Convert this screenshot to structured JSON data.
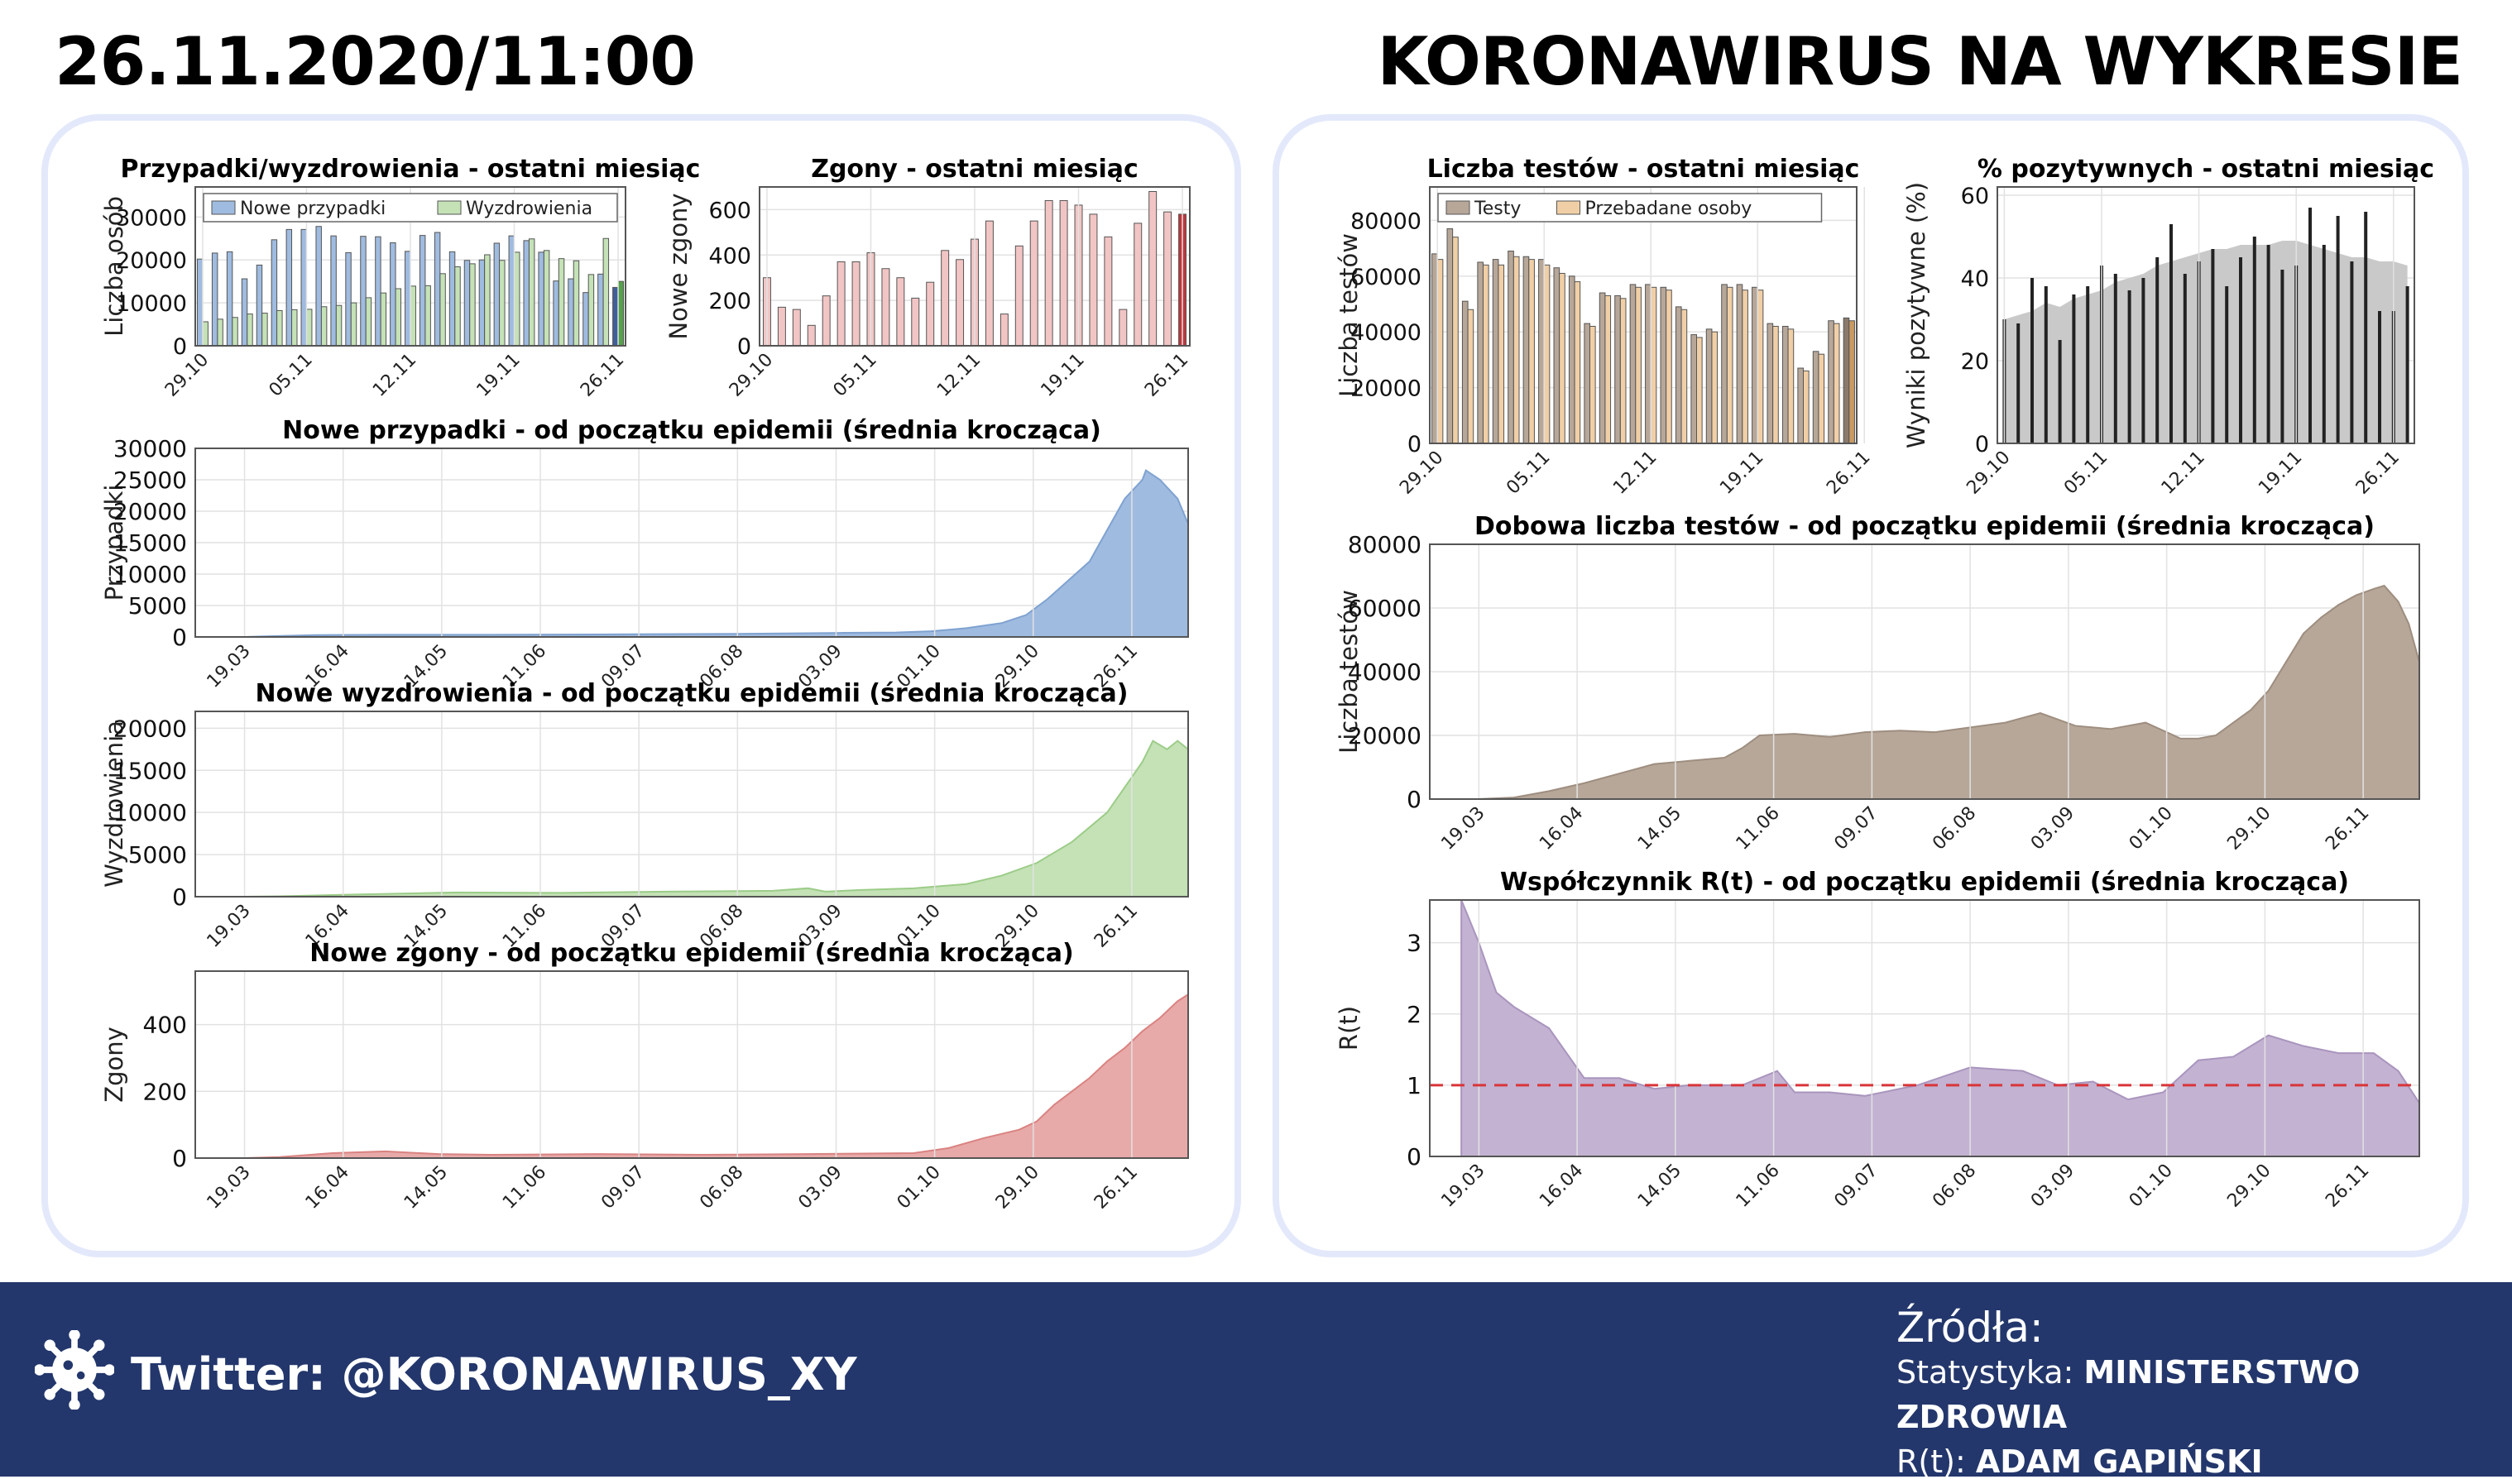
{
  "header": {
    "date": "26.11.2020/11:00",
    "title": "KORONAWIRUS NA WYKRESIE"
  },
  "footer": {
    "twitter": "Twitter: @KORONAWIRUS_XY",
    "sources_title": "Źródła:",
    "stat_label": "Statystyka: ",
    "stat_value": "MINISTERSTWO ZDROWIA",
    "rt_label": "R(t): ",
    "rt_value": "ADAM GAPIŃSKI"
  },
  "colors": {
    "blue": "#9fbbe0",
    "green": "#c4e2b6",
    "red": "#e8aaa9",
    "tan": "#b7a799",
    "purple": "#c3b2d2",
    "grey": "#bdbdbd",
    "navy": "#23376c"
  },
  "chart_data": [
    {
      "id": "cases-recoveries-month",
      "type": "bar",
      "title": "Przypadki/wyzdrowienia - ostatni miesiąc",
      "ylabel": "Liczba osób",
      "ylim": [
        0,
        37000
      ],
      "yticks": [
        0,
        10000,
        20000,
        30000
      ],
      "xticks": [
        "29.10",
        "05.11",
        "12.11",
        "19.11",
        "26.11"
      ],
      "legend": "top-left",
      "series": [
        {
          "name": "Nowe przypadki",
          "color": "#9fbbe0",
          "highlight": "#3f5f9a",
          "values": [
            20200,
            21600,
            21900,
            15600,
            18800,
            24700,
            27100,
            27100,
            27800,
            25600,
            21700,
            25500,
            25400,
            24000,
            22000,
            25700,
            26400,
            21900,
            19900,
            20000,
            23900,
            25600,
            24500,
            21800,
            15100,
            15600,
            12400,
            16700,
            13600
          ]
        },
        {
          "name": "Wyzdrowienia",
          "color": "#c4e2b6",
          "highlight": "#55a24a",
          "values": [
            5600,
            6200,
            6600,
            7400,
            7600,
            8200,
            8400,
            8500,
            9100,
            9400,
            10000,
            11200,
            12300,
            13300,
            13900,
            14000,
            16800,
            18400,
            19100,
            21200,
            19900,
            21800,
            24900,
            22200,
            20300,
            19800,
            16600,
            25000,
            15000
          ]
        }
      ]
    },
    {
      "id": "deaths-month",
      "type": "bar",
      "title": "Zgony - ostatni miesiąc",
      "ylabel": "Nowe zgony",
      "ylim": [
        0,
        700
      ],
      "yticks": [
        0,
        200,
        400,
        600
      ],
      "xticks": [
        "29.10",
        "05.11",
        "12.11",
        "19.11",
        "26.11"
      ],
      "series": [
        {
          "name": "",
          "color": "#f2c5c5",
          "highlight": "#c0353a",
          "values": [
            300,
            170,
            160,
            90,
            220,
            370,
            370,
            410,
            340,
            300,
            210,
            280,
            420,
            380,
            470,
            550,
            140,
            440,
            550,
            640,
            640,
            620,
            580,
            480,
            160,
            540,
            680,
            590,
            580
          ]
        }
      ]
    },
    {
      "id": "new-cases-epidemic",
      "type": "area",
      "title": "Nowe przypadki - od początku epidemii (średnia krocząca)",
      "ylabel": "Przypadki",
      "ylim": [
        0,
        30000
      ],
      "yticks": [
        0,
        5000,
        10000,
        15000,
        20000,
        25000,
        30000
      ],
      "xticks": [
        "19.03",
        "16.04",
        "14.05",
        "11.06",
        "09.07",
        "06.08",
        "03.09",
        "01.10",
        "29.10",
        "26.11"
      ],
      "x_days": [
        0,
        6,
        20,
        40,
        70,
        100,
        140,
        170,
        185,
        195,
        205,
        215,
        222,
        228,
        233,
        240,
        245,
        250,
        255,
        256,
        260,
        265,
        268
      ],
      "values": [
        0,
        100,
        300,
        350,
        350,
        400,
        500,
        650,
        700,
        900,
        1400,
        2200,
        3500,
        6000,
        8500,
        12000,
        17000,
        22000,
        25000,
        26500,
        25000,
        22000,
        18000
      ],
      "color": "#9fbbe0",
      "stroke": "#7fa2d0"
    },
    {
      "id": "new-recoveries-epidemic",
      "type": "area",
      "title": "Nowe wyzdrowienia - od początku epidemii (średnia krocząca)",
      "ylabel": "Wyzdrowienia",
      "ylim": [
        0,
        22000
      ],
      "yticks": [
        0,
        5000,
        10000,
        15000,
        20000
      ],
      "xticks": [
        "19.03",
        "16.04",
        "14.05",
        "11.06",
        "09.07",
        "06.08",
        "03.09",
        "01.10",
        "29.10",
        "26.11"
      ],
      "x_days": [
        0,
        10,
        30,
        60,
        90,
        120,
        150,
        160,
        165,
        175,
        190,
        205,
        215,
        225,
        235,
        245,
        250,
        255,
        258,
        262,
        265,
        268
      ],
      "values": [
        0,
        50,
        250,
        500,
        450,
        600,
        700,
        1000,
        600,
        800,
        1000,
        1500,
        2500,
        4000,
        6500,
        10000,
        13000,
        16000,
        18500,
        17500,
        18500,
        17500
      ],
      "color": "#c4e2b6",
      "stroke": "#9ccc88"
    },
    {
      "id": "new-deaths-epidemic",
      "type": "area",
      "title": "Nowe zgony - od początku epidemii (średnia krocząca)",
      "ylabel": "Zgony",
      "ylim": [
        0,
        560
      ],
      "yticks": [
        0,
        200,
        400
      ],
      "xticks": [
        "19.03",
        "16.04",
        "14.05",
        "11.06",
        "09.07",
        "06.08",
        "03.09",
        "01.10",
        "29.10",
        "26.11"
      ],
      "x_days": [
        0,
        10,
        25,
        40,
        55,
        70,
        100,
        130,
        160,
        190,
        200,
        210,
        220,
        225,
        230,
        235,
        240,
        245,
        250,
        255,
        260,
        265,
        268
      ],
      "values": [
        0,
        3,
        15,
        20,
        12,
        10,
        12,
        10,
        12,
        15,
        30,
        60,
        85,
        110,
        160,
        200,
        240,
        290,
        330,
        380,
        420,
        470,
        490
      ],
      "color": "#e8aaa9",
      "stroke": "#d98381"
    },
    {
      "id": "tests-month",
      "type": "bar",
      "title": "Liczba testów - ostatni miesiąc",
      "ylabel": "Liczba testów",
      "ylim": [
        0,
        92000
      ],
      "yticks": [
        0,
        20000,
        40000,
        60000,
        80000
      ],
      "xticks": [
        "29.10",
        "05.11",
        "12.11",
        "19.11",
        "26.11"
      ],
      "legend": "top-left",
      "series": [
        {
          "name": "Testy",
          "color": "#b7a799",
          "highlight": "#8a7a6c",
          "values": [
            68000,
            77000,
            51000,
            65000,
            66000,
            69000,
            67000,
            66000,
            63000,
            60000,
            43000,
            54000,
            53000,
            57000,
            57000,
            56000,
            49000,
            39000,
            41000,
            57000,
            57000,
            56000,
            43000,
            42000,
            27000,
            33000,
            44000,
            45000
          ]
        },
        {
          "name": "Przebadane osoby",
          "color": "#f1cfa6",
          "highlight": "#c99a61",
          "values": [
            66000,
            74000,
            48000,
            64000,
            64000,
            67000,
            66000,
            64000,
            61000,
            58000,
            42000,
            53000,
            52000,
            56000,
            56000,
            55000,
            48000,
            38000,
            40000,
            56000,
            55000,
            55000,
            42000,
            41000,
            26000,
            32000,
            43000,
            44000
          ]
        }
      ]
    },
    {
      "id": "positive-month",
      "type": "bar",
      "title": "% pozytywnych - ostatni miesiąc",
      "ylabel": "Wyniki pozytywne (%)",
      "ylim": [
        0,
        62
      ],
      "yticks": [
        0,
        20,
        40,
        60
      ],
      "xticks": [
        "29.10",
        "05.11",
        "12.11",
        "19.11",
        "26.11"
      ],
      "series": [
        {
          "name": "",
          "color": "#222222",
          "values": [
            30,
            29,
            40,
            38,
            25,
            36,
            38,
            43,
            41,
            37,
            40,
            45,
            53,
            41,
            44,
            47,
            38,
            45,
            50,
            48,
            42,
            43,
            57,
            48,
            55,
            44,
            56,
            32,
            32,
            38
          ]
        }
      ],
      "background_area": {
        "color": "#c9c9c9",
        "values": [
          30,
          31,
          32,
          34,
          33,
          35,
          36,
          37,
          39,
          40,
          41,
          43,
          44,
          45,
          46,
          47,
          47,
          48,
          48,
          48,
          49,
          49,
          48,
          47,
          46,
          45,
          45,
          44,
          44,
          43
        ]
      }
    },
    {
      "id": "daily-tests-epidemic",
      "type": "area",
      "title": "Dobowa liczba testów - od początku epidemii (średnia krocząca)",
      "ylabel": "Liczba testów",
      "ylim": [
        0,
        80000
      ],
      "yticks": [
        0,
        20000,
        40000,
        60000,
        80000
      ],
      "xticks": [
        "19.03",
        "16.04",
        "14.05",
        "11.06",
        "09.07",
        "06.08",
        "03.09",
        "01.10",
        "29.10",
        "26.11"
      ],
      "x_days": [
        0,
        10,
        20,
        30,
        40,
        50,
        60,
        70,
        75,
        80,
        90,
        100,
        110,
        120,
        130,
        140,
        150,
        160,
        170,
        180,
        190,
        200,
        205,
        210,
        215,
        220,
        225,
        230,
        235,
        240,
        245,
        250,
        255,
        258,
        262,
        265,
        268
      ],
      "values": [
        0,
        500,
        2500,
        5000,
        8000,
        11000,
        12000,
        13000,
        16000,
        20000,
        20500,
        19500,
        21000,
        21500,
        21000,
        22500,
        24000,
        27000,
        23000,
        22000,
        24000,
        19000,
        19000,
        20000,
        24000,
        28000,
        34000,
        43000,
        52000,
        57000,
        61000,
        64000,
        66000,
        67000,
        62000,
        55000,
        43000
      ],
      "color": "#b7a799",
      "stroke": "#9e8e80"
    },
    {
      "id": "rt-epidemic",
      "type": "area",
      "title": "Współczynnik R(t) - od początku epidemii (średnia krocząca)",
      "ylabel": "R(t)",
      "ylim": [
        0,
        3.6
      ],
      "yticks": [
        0,
        1,
        2,
        3
      ],
      "xticks": [
        "19.03",
        "16.04",
        "14.05",
        "11.06",
        "09.07",
        "06.08",
        "03.09",
        "01.10",
        "29.10",
        "26.11"
      ],
      "x_days": [
        -5,
        0,
        5,
        10,
        20,
        30,
        40,
        50,
        60,
        75,
        85,
        90,
        100,
        110,
        125,
        140,
        155,
        165,
        175,
        185,
        195,
        205,
        215,
        225,
        235,
        245,
        255,
        262,
        268
      ],
      "values": [
        3.6,
        3.0,
        2.3,
        2.1,
        1.8,
        1.1,
        1.1,
        0.95,
        1.0,
        1.0,
        1.2,
        0.9,
        0.9,
        0.85,
        1.0,
        1.25,
        1.2,
        1.0,
        1.05,
        0.8,
        0.9,
        1.35,
        1.4,
        1.7,
        1.55,
        1.45,
        1.45,
        1.2,
        0.75
      ],
      "reference_line": 1,
      "color": "#c3b2d2",
      "stroke": "#a995bd"
    }
  ]
}
